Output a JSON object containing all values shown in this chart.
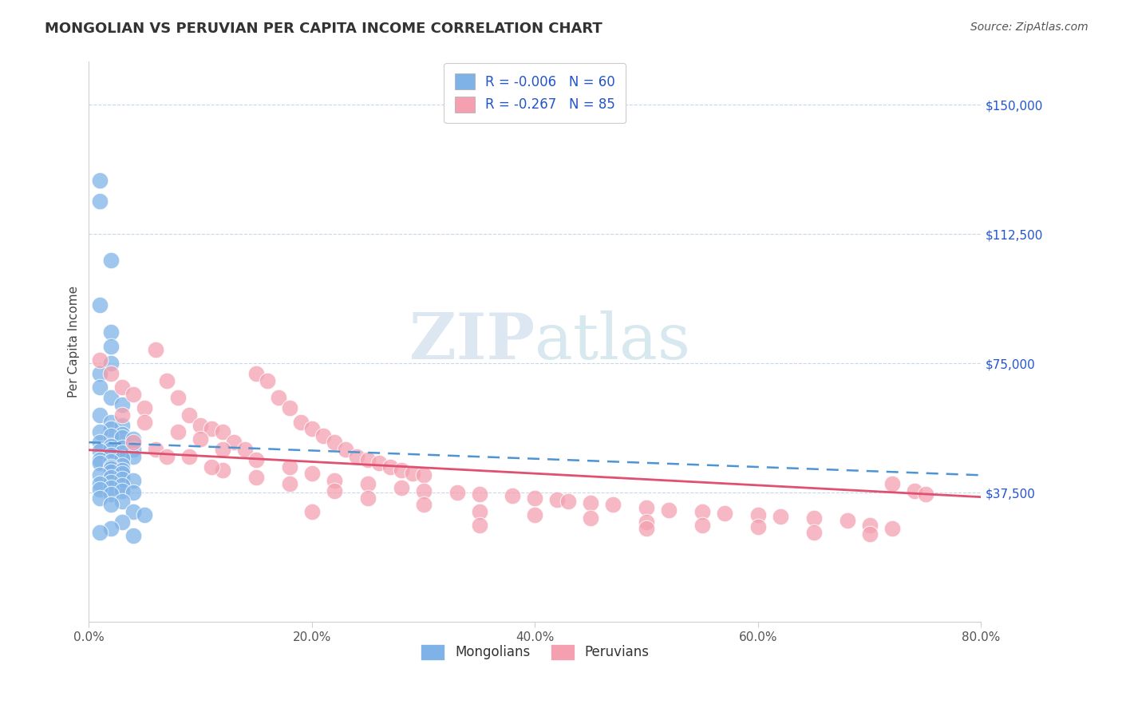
{
  "title": "MONGOLIAN VS PERUVIAN PER CAPITA INCOME CORRELATION CHART",
  "source_text": "Source: ZipAtlas.com",
  "ylabel": "Per Capita Income",
  "xlim": [
    0.0,
    0.8
  ],
  "ylim": [
    0,
    162500
  ],
  "yticks": [
    0,
    37500,
    75000,
    112500,
    150000
  ],
  "ytick_labels": [
    "",
    "$37,500",
    "$75,000",
    "$112,500",
    "$150,000"
  ],
  "xtick_labels": [
    "0.0%",
    "20.0%",
    "40.0%",
    "60.0%",
    "80.0%"
  ],
  "xtick_vals": [
    0.0,
    0.2,
    0.4,
    0.6,
    0.8
  ],
  "mongolian_color": "#7fb3e8",
  "peruvian_color": "#f4a0b0",
  "mongolian_line_color": "#4d94d4",
  "peruvian_line_color": "#e05070",
  "r_mongolian": -0.006,
  "n_mongolian": 60,
  "r_peruvian": -0.267,
  "n_peruvian": 85,
  "legend_r_color": "#2255cc",
  "background_color": "#ffffff",
  "grid_color": "#c8d8e8",
  "watermark_zip": "ZIP",
  "watermark_atlas": "atlas",
  "mongolian_x": [
    0.01,
    0.01,
    0.02,
    0.01,
    0.02,
    0.02,
    0.02,
    0.01,
    0.01,
    0.02,
    0.03,
    0.01,
    0.02,
    0.03,
    0.02,
    0.01,
    0.03,
    0.02,
    0.03,
    0.04,
    0.01,
    0.02,
    0.03,
    0.04,
    0.02,
    0.01,
    0.03,
    0.02,
    0.04,
    0.03,
    0.01,
    0.02,
    0.01,
    0.03,
    0.02,
    0.02,
    0.03,
    0.02,
    0.03,
    0.01,
    0.02,
    0.03,
    0.04,
    0.02,
    0.01,
    0.03,
    0.02,
    0.01,
    0.03,
    0.04,
    0.02,
    0.01,
    0.03,
    0.02,
    0.04,
    0.05,
    0.03,
    0.02,
    0.01,
    0.04
  ],
  "mongolian_y": [
    128000,
    122000,
    105000,
    92000,
    84000,
    80000,
    75000,
    72000,
    68000,
    65000,
    63000,
    60000,
    58000,
    57000,
    56000,
    55000,
    54500,
    54000,
    53500,
    53000,
    52000,
    51000,
    50500,
    50000,
    50000,
    49500,
    49000,
    48500,
    48000,
    47500,
    47000,
    46500,
    46000,
    45500,
    45000,
    44500,
    44000,
    43500,
    43000,
    42500,
    42000,
    41500,
    41000,
    40500,
    40000,
    39500,
    39000,
    38500,
    38000,
    37500,
    37000,
    36000,
    35000,
    34000,
    32000,
    31000,
    29000,
    27000,
    26000,
    25000
  ],
  "peruvian_x": [
    0.01,
    0.02,
    0.03,
    0.04,
    0.05,
    0.06,
    0.07,
    0.08,
    0.09,
    0.1,
    0.11,
    0.12,
    0.13,
    0.14,
    0.15,
    0.16,
    0.17,
    0.18,
    0.19,
    0.2,
    0.21,
    0.22,
    0.23,
    0.24,
    0.25,
    0.26,
    0.27,
    0.28,
    0.29,
    0.3,
    0.03,
    0.05,
    0.08,
    0.1,
    0.12,
    0.15,
    0.18,
    0.2,
    0.22,
    0.25,
    0.28,
    0.3,
    0.33,
    0.35,
    0.38,
    0.4,
    0.42,
    0.43,
    0.45,
    0.47,
    0.5,
    0.52,
    0.55,
    0.57,
    0.6,
    0.62,
    0.65,
    0.68,
    0.7,
    0.72,
    0.04,
    0.06,
    0.09,
    0.12,
    0.15,
    0.18,
    0.22,
    0.25,
    0.3,
    0.35,
    0.4,
    0.45,
    0.5,
    0.55,
    0.6,
    0.65,
    0.7,
    0.72,
    0.74,
    0.75,
    0.07,
    0.11,
    0.2,
    0.35,
    0.5
  ],
  "peruvian_y": [
    76000,
    72000,
    68000,
    66000,
    62000,
    79000,
    70000,
    65000,
    60000,
    57000,
    56000,
    55000,
    52000,
    50000,
    72000,
    70000,
    65000,
    62000,
    58000,
    56000,
    54000,
    52000,
    50000,
    48000,
    47000,
    46000,
    45000,
    44000,
    43000,
    42500,
    60000,
    58000,
    55000,
    53000,
    50000,
    47000,
    45000,
    43000,
    41000,
    40000,
    39000,
    38000,
    37500,
    37000,
    36500,
    36000,
    35500,
    35000,
    34500,
    34000,
    33000,
    32500,
    32000,
    31500,
    31000,
    30500,
    30000,
    29500,
    28000,
    27000,
    52000,
    50000,
    48000,
    44000,
    42000,
    40000,
    38000,
    36000,
    34000,
    32000,
    31000,
    30000,
    29000,
    28000,
    27500,
    26000,
    25500,
    40000,
    38000,
    37000,
    48000,
    45000,
    32000,
    28000,
    27000
  ]
}
